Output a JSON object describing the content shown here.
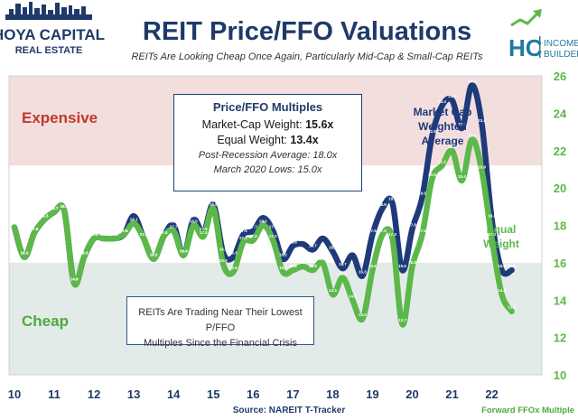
{
  "brand_left": {
    "line1": "HOYA CAPITAL",
    "line2": "REAL ESTATE"
  },
  "brand_right": {
    "hc": "HC",
    "line1": "INCOME",
    "line2": "BUILDER"
  },
  "footer": {
    "source": "Source: NAREIT T-Tracker",
    "right_label": "Forward FFOx Multiple"
  },
  "zones": {
    "expensive": "Expensive",
    "cheap": "Cheap"
  },
  "info_box": {
    "heading": "Price/FFO Multiples",
    "mcap_label": "Market-Cap Weight: ",
    "mcap_value": "15.6x",
    "eq_label": "Equal Weight: ",
    "eq_value": "13.4x",
    "post_recession": "Post-Recession Average: 18.0x",
    "march_lows": "March 2020 Lows: 15.0x"
  },
  "note_box": {
    "line1": "REITs Are Trading Near Their Lowest P/FFO",
    "line2": "Multiples Since the Financial Crisis"
  },
  "colors": {
    "mcap": "#1f3a7a",
    "equal": "#5cb84a",
    "expensive_zone": "#f3dede",
    "cheap_zone": "#e3ebe9",
    "title": "#1f3a6a",
    "expensive_text": "#c0392b",
    "cheap_text": "#4caa3c"
  },
  "chart_data": {
    "type": "line",
    "title": "REIT Price/FFO Valuations",
    "subtitle": "REITs Are Looking Cheap Once Again, Particularly Mid-Cap & Small-Cap REITs",
    "xlabel": "",
    "ylabel": "Forward FFOx Multiple",
    "x_ticks": [
      "10",
      "11",
      "12",
      "13",
      "14",
      "15",
      "16",
      "17",
      "18",
      "19",
      "20",
      "21",
      "22"
    ],
    "x_range": [
      2010,
      2022.8
    ],
    "ylim": [
      10,
      26
    ],
    "y_ticks": [
      "10",
      "12",
      "14",
      "16",
      "18",
      "20",
      "22",
      "24",
      "26"
    ],
    "zones": {
      "expensive_from": 21.2,
      "cheap_to": 16.0
    },
    "series": [
      {
        "name": "Market Cap Weighted Average",
        "annotation": [
          "Market Cap",
          "Weighted",
          "Average"
        ],
        "x": [
          2010.0,
          2010.25,
          2010.5,
          2010.75,
          2011.0,
          2011.25,
          2011.5,
          2011.75,
          2012.0,
          2012.25,
          2012.5,
          2012.75,
          2013.0,
          2013.25,
          2013.5,
          2013.75,
          2014.0,
          2014.25,
          2014.5,
          2014.75,
          2015.0,
          2015.25,
          2015.5,
          2015.75,
          2016.0,
          2016.25,
          2016.5,
          2016.75,
          2017.0,
          2017.25,
          2017.5,
          2017.75,
          2018.0,
          2018.25,
          2018.5,
          2018.75,
          2019.0,
          2019.25,
          2019.5,
          2019.75,
          2020.0,
          2020.25,
          2020.5,
          2020.75,
          2021.0,
          2021.25,
          2021.5,
          2021.75,
          2022.0,
          2022.25,
          2022.5
        ],
        "values": [
          17.9,
          16.3,
          17.6,
          18.3,
          18.7,
          18.8,
          14.9,
          16.3,
          17.3,
          17.3,
          17.3,
          17.5,
          18.5,
          17.3,
          16.2,
          17.4,
          18.0,
          16.4,
          18.3,
          17.6,
          19.1,
          16.5,
          16.3,
          17.5,
          17.7,
          18.4,
          17.7,
          16.2,
          16.9,
          17.0,
          16.7,
          17.3,
          16.6,
          15.7,
          16.4,
          15.3,
          17.5,
          18.9,
          19.2,
          15.6,
          17.8,
          19.5,
          22.8,
          24.4,
          24.7,
          23.2,
          25.5,
          23.4,
          18.3,
          15.6,
          15.6
        ]
      },
      {
        "name": "Equal Weight",
        "annotation": [
          "Equal",
          "Weight"
        ],
        "x": [
          2010.0,
          2010.25,
          2010.5,
          2010.75,
          2011.0,
          2011.25,
          2011.5,
          2011.75,
          2012.0,
          2012.25,
          2012.5,
          2012.75,
          2013.0,
          2013.25,
          2013.5,
          2013.75,
          2014.0,
          2014.25,
          2014.5,
          2014.75,
          2015.0,
          2015.25,
          2015.5,
          2015.75,
          2016.0,
          2016.25,
          2016.5,
          2016.75,
          2017.0,
          2017.25,
          2017.5,
          2017.75,
          2018.0,
          2018.25,
          2018.5,
          2018.75,
          2019.0,
          2019.25,
          2019.5,
          2019.75,
          2020.0,
          2020.25,
          2020.5,
          2020.75,
          2021.0,
          2021.25,
          2021.5,
          2021.75,
          2022.0,
          2022.25,
          2022.5
        ],
        "values": [
          17.9,
          16.3,
          17.6,
          18.3,
          18.7,
          18.8,
          14.9,
          16.3,
          17.3,
          17.3,
          17.3,
          17.5,
          18.1,
          17.3,
          16.2,
          17.4,
          17.7,
          16.4,
          18.0,
          17.4,
          18.9,
          15.9,
          15.5,
          17.1,
          17.2,
          18.0,
          17.2,
          15.5,
          15.6,
          15.8,
          15.6,
          16.0,
          14.3,
          15.2,
          14.0,
          13.0,
          15.6,
          17.5,
          17.3,
          12.7,
          15.8,
          17.5,
          20.5,
          21.2,
          22.0,
          20.4,
          22.6,
          20.9,
          17.3,
          14.3,
          13.4
        ]
      }
    ],
    "data_labels": {
      "mcap": [
        "17.9",
        "16.3",
        "17.6",
        "18.3",
        "18.7",
        "18.8",
        "14.9",
        "16.3",
        "17.3",
        "17.3",
        "17.3",
        "17.5",
        "18.5",
        "17.3",
        "16.2",
        "17.4",
        "18.0",
        "16.4",
        "18.3",
        "17.6",
        "19.1",
        "16.5",
        "16.3",
        "17.5",
        "17.7",
        "18.4",
        "17.7",
        "16.2",
        "16.9",
        "17.0",
        "16.7",
        "17.3",
        "16.6",
        "15.7",
        "16.4",
        "15.3",
        "17.5",
        "18.9",
        "19.2",
        "15.6",
        "17.8",
        "19.5",
        "22.8",
        "24.4",
        "24.7",
        "23.2",
        "25.5",
        "23.4",
        "18.3",
        "15.6",
        "15.6"
      ],
      "equal": [
        "17.9",
        "16.3",
        "17.6",
        "18.3",
        "18.7",
        "18.8",
        "14.9",
        "16.3",
        "17.3",
        "17.3",
        "17.3",
        "17.5",
        "18.1",
        "17.3",
        "16.2",
        "17.4",
        "17.7",
        "16.4",
        "18.0",
        "17.4",
        "18.9",
        "15.9",
        "15.5",
        "17.1",
        "17.2",
        "18.0",
        "17.2",
        "15.5",
        "15.6",
        "15.8",
        "15.6",
        "16.0",
        "14.3",
        "15.2",
        "14.0",
        "13.0",
        "15.6",
        "17.5",
        "17.3",
        "12.7",
        "15.8",
        "17.5",
        "20.5",
        "21.2",
        "22.0",
        "20.4",
        "22.6",
        "20.9",
        "17.3",
        "14.3",
        "13.4"
      ]
    }
  }
}
